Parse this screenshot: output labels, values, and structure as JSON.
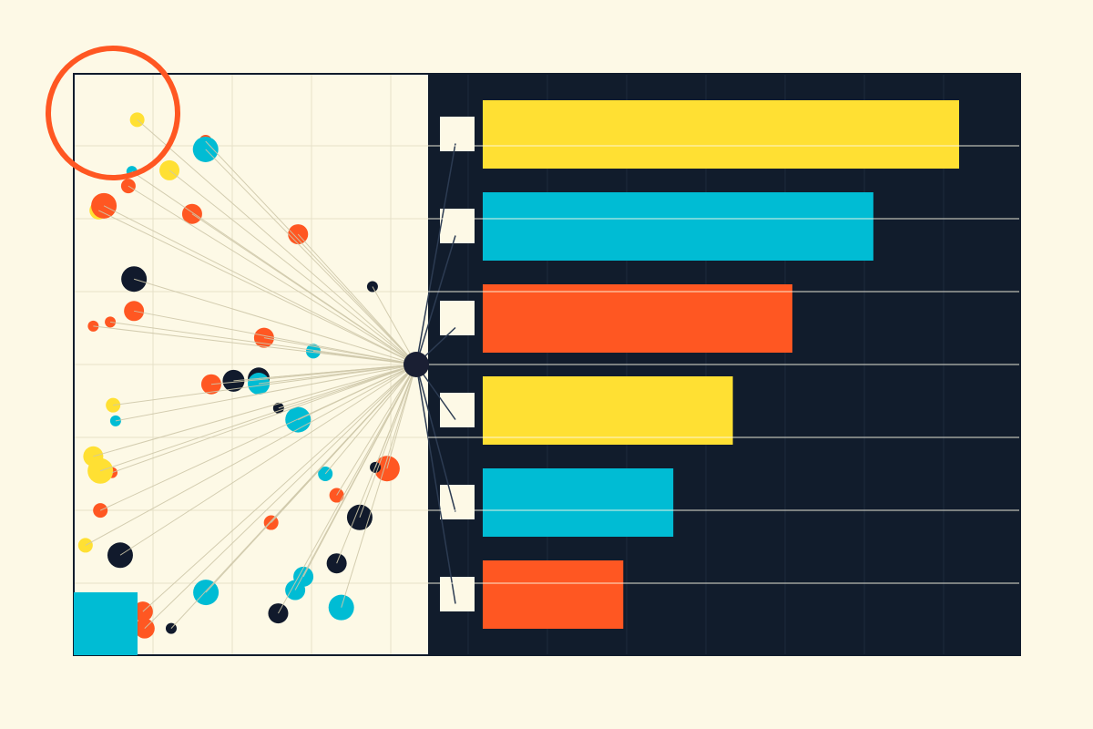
{
  "colors": {
    "background": "#fdf9e6",
    "dark_panel": "#111c2c",
    "dark_dot": "#111a2c",
    "yellow": "#ffe033",
    "cyan": "#00bcd4",
    "orange": "#ff5722",
    "label_box": "#fdf9e6",
    "grid_light": "#e6e1c8",
    "grid_dark": "#1d2a3c",
    "line_light": "#cfc8aa",
    "line_dark": "#2c3b52",
    "hub": "#1a1f33"
  },
  "chart_data": [
    {
      "type": "bar",
      "orientation": "horizontal",
      "categories": [
        "",
        "",
        "",
        "",
        "",
        ""
      ],
      "values": [
        100,
        82,
        65,
        52.5,
        40,
        29.5
      ],
      "bar_colors": [
        "#ffe033",
        "#00bcd4",
        "#ff5722",
        "#ffe033",
        "#00bcd4",
        "#ff5722"
      ],
      "xlim": [
        0,
        100
      ],
      "grid": true,
      "legend": "none",
      "title": "",
      "xlabel": "",
      "ylabel": ""
    },
    {
      "type": "scatter",
      "xlim": [
        0,
        100
      ],
      "ylim": [
        0,
        100
      ],
      "grid": true,
      "legend": "none",
      "title": "",
      "xlabel": "",
      "ylabel": "",
      "points": [
        {
          "x": 37.2,
          "y": 88.4,
          "r": 7,
          "color": "orange"
        },
        {
          "x": 17.9,
          "y": 92.1,
          "r": 8,
          "color": "yellow"
        },
        {
          "x": 37.2,
          "y": 87.0,
          "r": 14,
          "color": "cyan"
        },
        {
          "x": 16.4,
          "y": 83.2,
          "r": 6,
          "color": "cyan"
        },
        {
          "x": 27.0,
          "y": 83.4,
          "r": 11,
          "color": "yellow"
        },
        {
          "x": 15.4,
          "y": 80.7,
          "r": 8,
          "color": "orange"
        },
        {
          "x": 7.0,
          "y": 76.5,
          "r": 10,
          "color": "yellow"
        },
        {
          "x": 8.5,
          "y": 77.3,
          "r": 14,
          "color": "orange"
        },
        {
          "x": 33.4,
          "y": 75.9,
          "r": 11,
          "color": "orange"
        },
        {
          "x": 63.3,
          "y": 72.4,
          "r": 11,
          "color": "orange"
        },
        {
          "x": 17.0,
          "y": 64.7,
          "r": 14,
          "color": "dark"
        },
        {
          "x": 84.3,
          "y": 63.4,
          "r": 6,
          "color": "dark"
        },
        {
          "x": 17.0,
          "y": 59.2,
          "r": 11,
          "color": "orange"
        },
        {
          "x": 10.3,
          "y": 57.3,
          "r": 6,
          "color": "orange"
        },
        {
          "x": 5.5,
          "y": 56.6,
          "r": 6,
          "color": "orange"
        },
        {
          "x": 53.7,
          "y": 54.6,
          "r": 11,
          "color": "orange"
        },
        {
          "x": 67.6,
          "y": 52.3,
          "r": 8,
          "color": "cyan"
        },
        {
          "x": 52.2,
          "y": 47.6,
          "r": 12,
          "color": "dark"
        },
        {
          "x": 45.1,
          "y": 47.2,
          "r": 12,
          "color": "dark"
        },
        {
          "x": 52.2,
          "y": 46.7,
          "r": 12,
          "color": "cyan"
        },
        {
          "x": 38.8,
          "y": 46.6,
          "r": 11,
          "color": "orange"
        },
        {
          "x": 11.1,
          "y": 43.0,
          "r": 8,
          "color": "yellow"
        },
        {
          "x": 57.8,
          "y": 42.5,
          "r": 6,
          "color": "dark"
        },
        {
          "x": 63.3,
          "y": 40.5,
          "r": 14,
          "color": "cyan"
        },
        {
          "x": 11.8,
          "y": 40.3,
          "r": 6,
          "color": "cyan"
        },
        {
          "x": 5.5,
          "y": 34.2,
          "r": 11,
          "color": "yellow"
        },
        {
          "x": 88.4,
          "y": 32.1,
          "r": 14,
          "color": "orange"
        },
        {
          "x": 85.1,
          "y": 32.3,
          "r": 6,
          "color": "dark"
        },
        {
          "x": 71.0,
          "y": 31.2,
          "r": 8,
          "color": "cyan"
        },
        {
          "x": 10.8,
          "y": 31.4,
          "r": 6,
          "color": "orange"
        },
        {
          "x": 7.5,
          "y": 31.7,
          "r": 14,
          "color": "yellow"
        },
        {
          "x": 74.2,
          "y": 27.5,
          "r": 8,
          "color": "orange"
        },
        {
          "x": 7.5,
          "y": 24.9,
          "r": 8,
          "color": "orange"
        },
        {
          "x": 80.7,
          "y": 23.7,
          "r": 14,
          "color": "dark"
        },
        {
          "x": 55.7,
          "y": 22.8,
          "r": 8,
          "color": "orange"
        },
        {
          "x": 3.3,
          "y": 18.9,
          "r": 8,
          "color": "yellow"
        },
        {
          "x": 13.1,
          "y": 17.2,
          "r": 14,
          "color": "dark"
        },
        {
          "x": 74.2,
          "y": 15.8,
          "r": 11,
          "color": "dark"
        },
        {
          "x": 64.8,
          "y": 13.5,
          "r": 11,
          "color": "cyan"
        },
        {
          "x": 62.5,
          "y": 11.2,
          "r": 11,
          "color": "cyan"
        },
        {
          "x": 37.3,
          "y": 10.8,
          "r": 14,
          "color": "cyan"
        },
        {
          "x": 19.5,
          "y": 7.5,
          "r": 11,
          "color": "orange"
        },
        {
          "x": 75.5,
          "y": 8.2,
          "r": 14,
          "color": "cyan"
        },
        {
          "x": 57.7,
          "y": 7.2,
          "r": 11,
          "color": "dark"
        },
        {
          "x": 20.0,
          "y": 4.6,
          "r": 11,
          "color": "orange"
        },
        {
          "x": 27.5,
          "y": 4.6,
          "r": 6,
          "color": "dark"
        }
      ]
    }
  ]
}
